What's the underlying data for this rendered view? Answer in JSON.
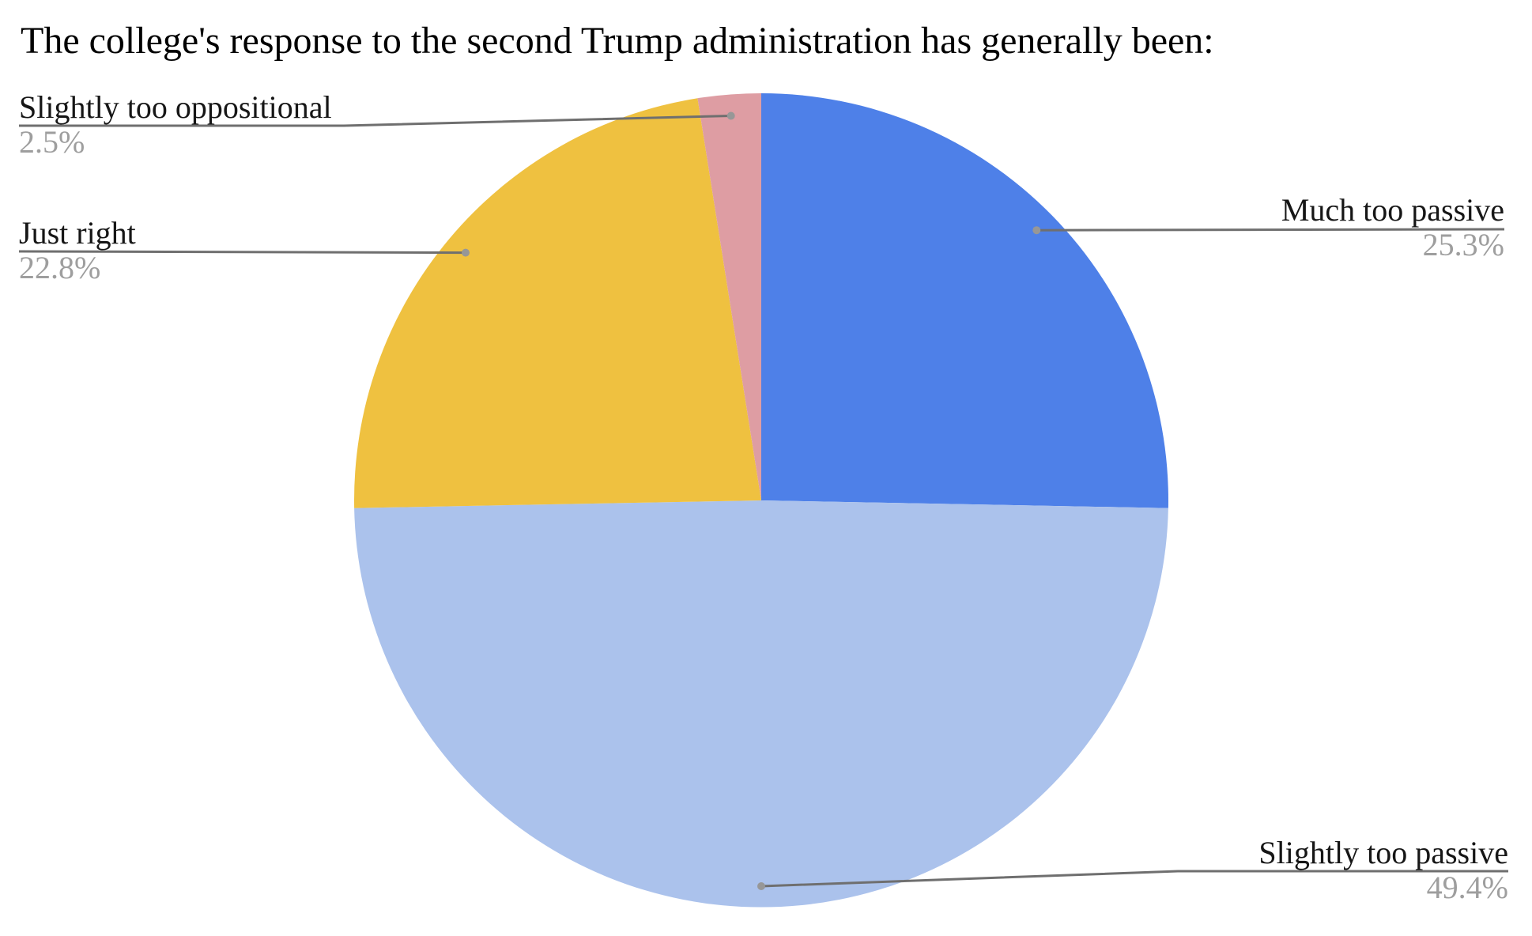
{
  "title": "The college's response to the second Trump administration has generally been:",
  "palette": {
    "background": "#FFFFFF",
    "title_text": "#000000",
    "label_text": "#161616",
    "percent_text": "#9E9E9E",
    "leader_line": "#6F6F6F",
    "leader_dot": "#979797"
  },
  "chart_data": {
    "type": "pie",
    "title": "The college's response to the second Trump administration has generally been:",
    "total_percent": 100.0,
    "start_angle_deg": -90,
    "direction": "clockwise",
    "label_style": "outside-callouts-with-leader-lines",
    "legend_position": "none",
    "slices": [
      {
        "id": "much-too-passive",
        "label": "Much too passive",
        "value": 25.3,
        "percent_label": "25.3%",
        "color": "#4E80E8"
      },
      {
        "id": "slightly-too-passive",
        "label": "Slightly too passive",
        "value": 49.4,
        "percent_label": "49.4%",
        "color": "#ABC2EC"
      },
      {
        "id": "just-right",
        "label": "Just right",
        "value": 22.8,
        "percent_label": "22.8%",
        "color": "#EFC140"
      },
      {
        "id": "slightly-too-oppositional",
        "label": "Slightly too oppositional",
        "value": 2.5,
        "percent_label": "2.5%",
        "color": "#DE9DA3"
      }
    ]
  }
}
